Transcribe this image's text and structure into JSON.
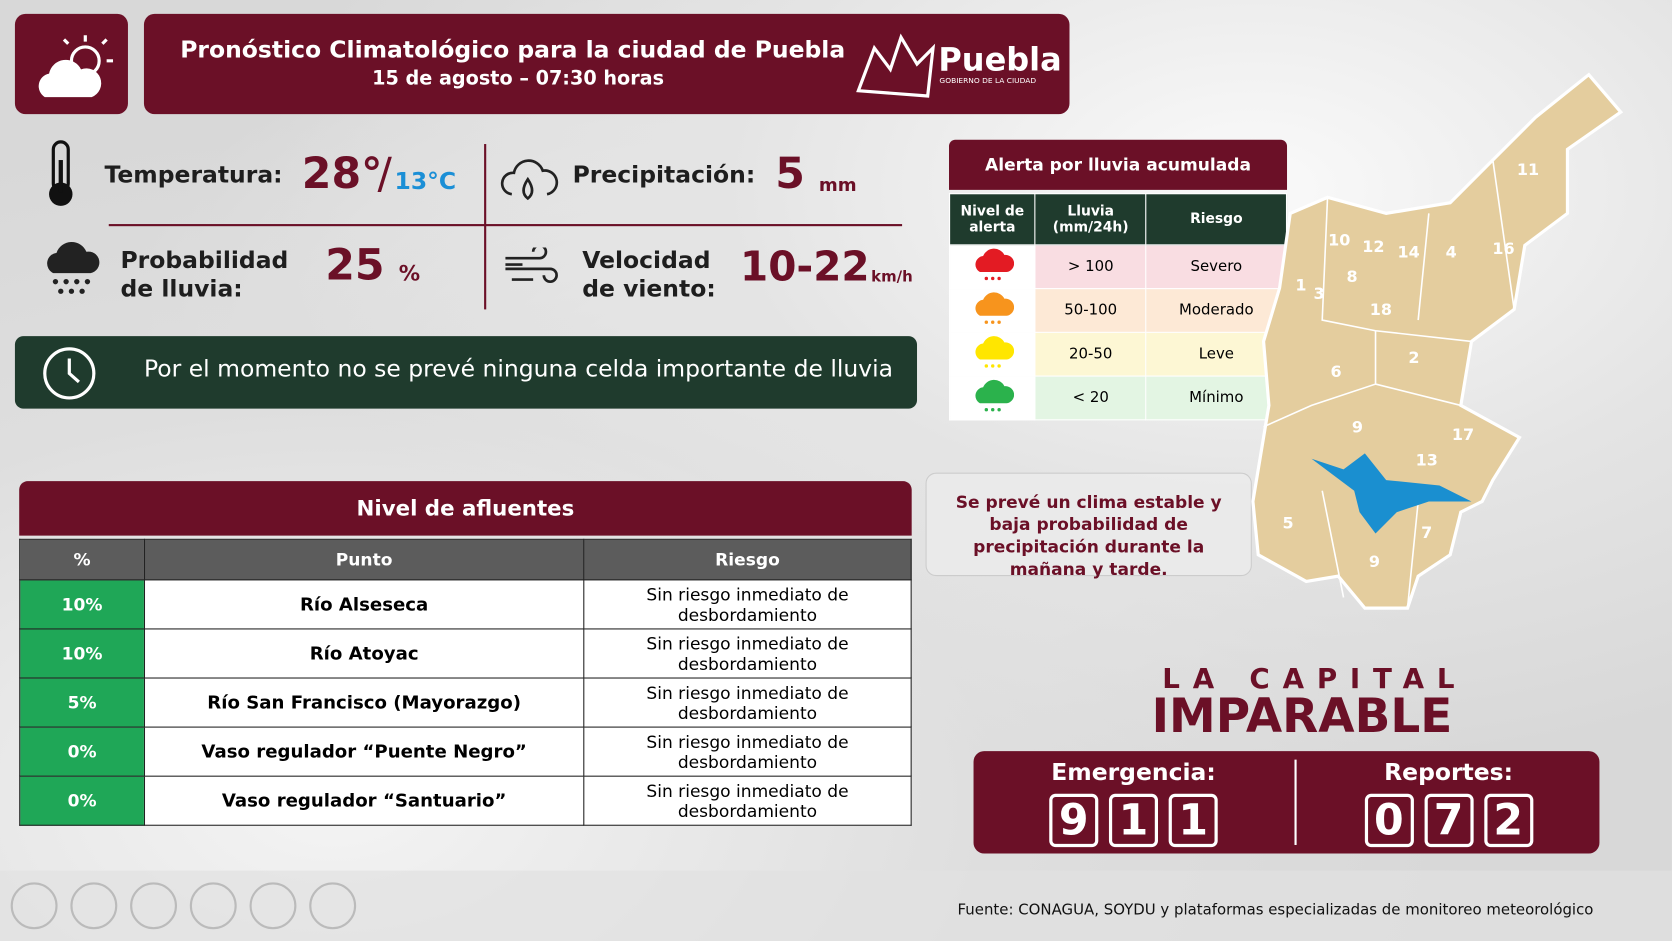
{
  "header": {
    "title": "Pronóstico Climatológico para la ciudad de Puebla",
    "subtitle": "15 de agosto – 07:30 horas",
    "logo": "Puebla",
    "logo_sub": "GOBIERNO DE LA CIUDAD"
  },
  "weather": {
    "temperature": {
      "label": "Temperatura:",
      "max": "28°",
      "sep": "/",
      "min": "13°C"
    },
    "precipitation": {
      "label": "Precipitación:",
      "value": "5",
      "unit": "mm"
    },
    "probability": {
      "label_1": "Probabilidad",
      "label_2": "de lluvia:",
      "value": "25",
      "unit": "%"
    },
    "wind": {
      "label_1": "Velocidad",
      "label_2": "de viento:",
      "value": "10-22",
      "unit": "km/h"
    }
  },
  "notice": "Por el momento no se prevé ninguna celda importante de lluvia",
  "alert_table": {
    "title": "Alerta por lluvia acumulada",
    "headers": [
      "Nivel de alerta",
      "Lluvia (mm/24h)",
      "Riesgo"
    ],
    "rows": [
      [
        "> 100",
        "Severo"
      ],
      [
        "50-100",
        "Moderado"
      ],
      [
        "20-50",
        "Leve"
      ],
      [
        "< 20",
        "Mínimo"
      ]
    ]
  },
  "message": "Se prevé un clima estable y baja probabilidad de precipitación durante la mañana y tarde.",
  "map": {
    "labels": [
      "11",
      "10",
      "12",
      "14",
      "4",
      "16",
      "1",
      "3",
      "8",
      "18",
      "2",
      "6",
      "9",
      "17",
      "13",
      "5",
      "7",
      "9"
    ]
  },
  "afluentes": {
    "title": "Nivel de afluentes",
    "headers": [
      "%",
      "Punto",
      "Riesgo"
    ],
    "rows": [
      [
        "10%",
        "Río Alseseca",
        "Sin riesgo inmediato de desbordamiento"
      ],
      [
        "10%",
        "Río Atoyac",
        "Sin riesgo inmediato de desbordamiento"
      ],
      [
        "5%",
        "Río San Francisco (Mayorazgo)",
        "Sin riesgo inmediato de desbordamiento"
      ],
      [
        "0%",
        "Vaso regulador “Puente Negro”",
        "Sin riesgo inmediato de desbordamiento"
      ],
      [
        "0%",
        "Vaso regulador “Santuario”",
        "Sin riesgo inmediato de desbordamiento"
      ]
    ]
  },
  "brand": {
    "line_1": "LA CAPITAL",
    "line_2": "IMPARABLE"
  },
  "contacts": {
    "emergency": {
      "label": "Emergencia:",
      "digits": [
        "9",
        "1",
        "1"
      ]
    },
    "reports": {
      "label": "Reportes:",
      "digits": [
        "0",
        "7",
        "2"
      ]
    }
  },
  "source": "Fuente: CONAGUA, SOYDU y plataformas especializadas de monitoreo meteorológico"
}
